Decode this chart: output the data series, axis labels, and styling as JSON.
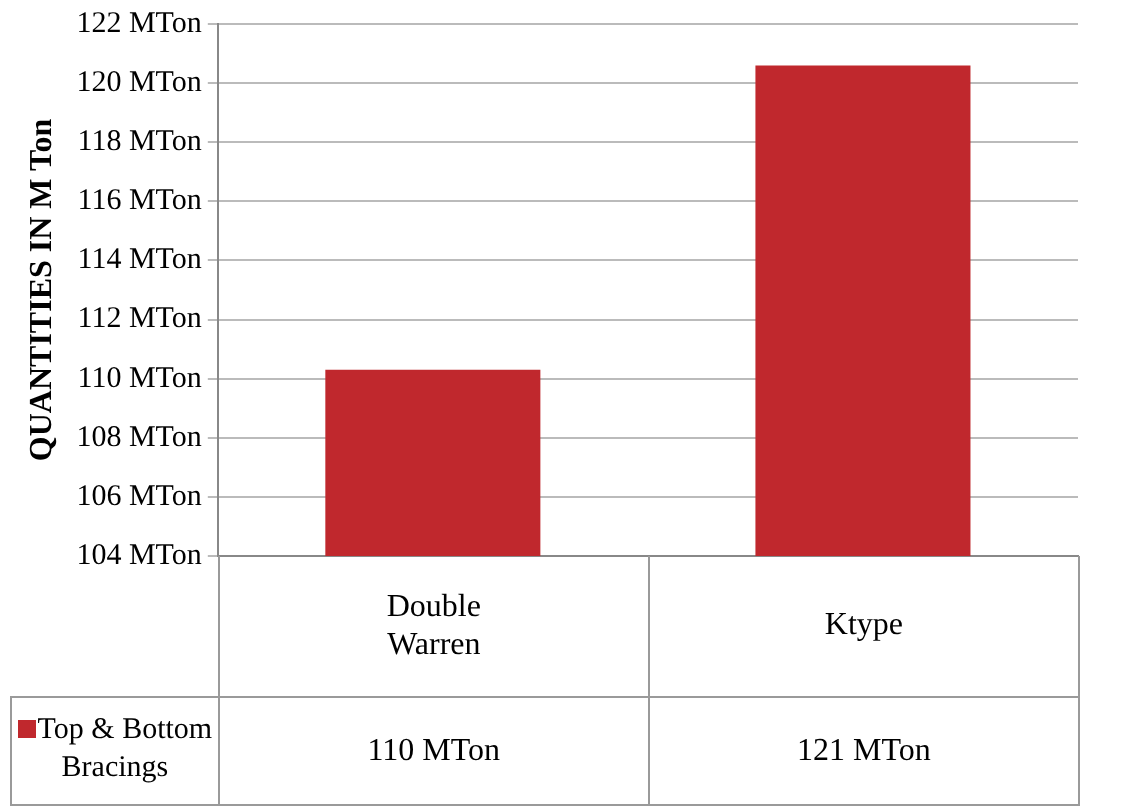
{
  "chart_data": {
    "type": "bar",
    "ylabel": "QUANTITIES IN M Ton",
    "categories": [
      "Double Warren",
      "Ktype"
    ],
    "series": [
      {
        "name": "Top & Bottom Bracings",
        "color": "#c0282d",
        "values": [
          110.3,
          120.6
        ],
        "value_labels": [
          "110 MTon",
          "121 MTon"
        ]
      }
    ],
    "ylim": [
      104,
      122
    ],
    "yticks": [
      {
        "value": 104,
        "label": "104 MTon"
      },
      {
        "value": 106,
        "label": "106 MTon"
      },
      {
        "value": 108,
        "label": "108 MTon"
      },
      {
        "value": 110,
        "label": "110 MTon"
      },
      {
        "value": 112,
        "label": "112 MTon"
      },
      {
        "value": 114,
        "label": "114 MTon"
      },
      {
        "value": 116,
        "label": "116 MTon"
      },
      {
        "value": 118,
        "label": "118 MTon"
      },
      {
        "value": 120,
        "label": "120 MTon"
      },
      {
        "value": 122,
        "label": "122 MTon"
      }
    ],
    "grid": "y"
  }
}
